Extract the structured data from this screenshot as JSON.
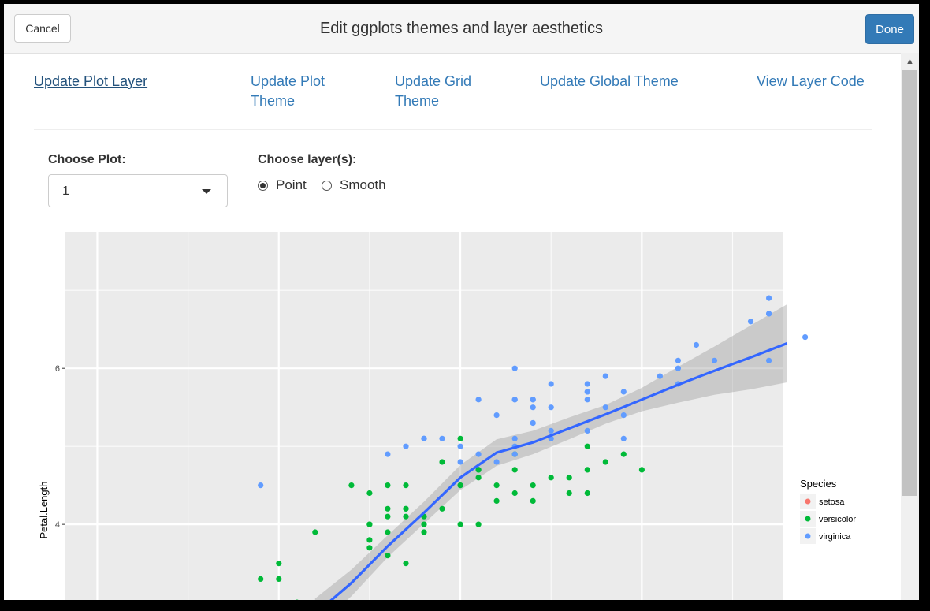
{
  "header": {
    "title": "Edit ggplots themes and layer aesthetics",
    "cancel_label": "Cancel",
    "done_label": "Done"
  },
  "tabs": [
    {
      "label": "Update Plot Layer",
      "active": true
    },
    {
      "label": "Update Plot Theme",
      "active": false
    },
    {
      "label": "Update Grid Theme",
      "active": false
    },
    {
      "label": "Update Global Theme",
      "active": false
    },
    {
      "label": "View Layer Code",
      "active": false
    }
  ],
  "controls": {
    "choose_plot_label": "Choose Plot:",
    "choose_plot_value": "1",
    "choose_layer_label": "Choose layer(s):",
    "layers": [
      {
        "label": "Point",
        "checked": true
      },
      {
        "label": "Smooth",
        "checked": false
      }
    ]
  },
  "chart_data": {
    "type": "scatter",
    "ylabel": "Petal.Length",
    "y_ticks": [
      "4",
      "6"
    ],
    "ylim": [
      2.9,
      7.75
    ],
    "xlim": [
      3.82,
      7.78
    ],
    "background": "#ebebeb",
    "grid": true,
    "legend": {
      "title": "Species",
      "position": "right",
      "entries": [
        {
          "name": "setosa",
          "color": "#f8766d"
        },
        {
          "name": "versicolor",
          "color": "#00ba38"
        },
        {
          "name": "virginica",
          "color": "#619cff"
        }
      ]
    },
    "series": [
      {
        "name": "versicolor",
        "color": "#00ba38",
        "points": [
          [
            7.0,
            4.7
          ],
          [
            6.4,
            4.5
          ],
          [
            6.9,
            4.9
          ],
          [
            5.5,
            4.0
          ],
          [
            6.5,
            4.6
          ],
          [
            5.7,
            4.5
          ],
          [
            6.3,
            4.7
          ],
          [
            4.9,
            3.3
          ],
          [
            6.6,
            4.6
          ],
          [
            5.2,
            3.9
          ],
          [
            5.0,
            3.5
          ],
          [
            5.9,
            4.2
          ],
          [
            6.0,
            4.0
          ],
          [
            6.1,
            4.7
          ],
          [
            5.6,
            3.6
          ],
          [
            6.7,
            4.4
          ],
          [
            5.6,
            4.5
          ],
          [
            5.8,
            4.1
          ],
          [
            6.2,
            4.5
          ],
          [
            5.6,
            3.9
          ],
          [
            5.9,
            4.8
          ],
          [
            6.1,
            4.0
          ],
          [
            6.3,
            4.9
          ],
          [
            6.1,
            4.7
          ],
          [
            6.4,
            4.3
          ],
          [
            6.6,
            4.4
          ],
          [
            6.8,
            4.8
          ],
          [
            6.7,
            5.0
          ],
          [
            6.0,
            4.5
          ],
          [
            5.7,
            3.5
          ],
          [
            5.5,
            3.8
          ],
          [
            5.5,
            3.7
          ],
          [
            5.8,
            3.9
          ],
          [
            6.0,
            5.1
          ],
          [
            5.4,
            4.5
          ],
          [
            6.0,
            4.5
          ],
          [
            6.7,
            4.7
          ],
          [
            6.3,
            4.4
          ],
          [
            5.6,
            4.1
          ],
          [
            5.5,
            4.0
          ],
          [
            5.5,
            4.4
          ],
          [
            6.1,
            4.6
          ],
          [
            5.8,
            4.0
          ],
          [
            5.0,
            3.3
          ],
          [
            5.6,
            4.2
          ],
          [
            5.7,
            4.2
          ],
          [
            5.7,
            4.2
          ],
          [
            6.2,
            4.3
          ],
          [
            5.1,
            3.0
          ],
          [
            5.7,
            4.1
          ]
        ]
      },
      {
        "name": "virginica",
        "color": "#619cff",
        "points": [
          [
            6.3,
            6.0
          ],
          [
            5.8,
            5.1
          ],
          [
            7.1,
            5.9
          ],
          [
            6.3,
            5.6
          ],
          [
            6.5,
            5.8
          ],
          [
            7.6,
            6.6
          ],
          [
            4.9,
            4.5
          ],
          [
            7.3,
            6.3
          ],
          [
            6.7,
            5.8
          ],
          [
            7.2,
            6.1
          ],
          [
            6.5,
            5.1
          ],
          [
            6.4,
            5.3
          ],
          [
            6.8,
            5.5
          ],
          [
            5.7,
            5.0
          ],
          [
            5.8,
            5.1
          ],
          [
            6.4,
            5.3
          ],
          [
            6.5,
            5.5
          ],
          [
            7.7,
            6.7
          ],
          [
            7.7,
            6.9
          ],
          [
            6.0,
            5.0
          ],
          [
            6.9,
            5.7
          ],
          [
            5.6,
            4.9
          ],
          [
            7.7,
            6.7
          ],
          [
            6.3,
            4.9
          ],
          [
            6.7,
            5.7
          ],
          [
            7.2,
            6.0
          ],
          [
            6.2,
            4.8
          ],
          [
            6.1,
            4.9
          ],
          [
            6.4,
            5.6
          ],
          [
            7.2,
            5.8
          ],
          [
            7.4,
            6.1
          ],
          [
            7.9,
            6.4
          ],
          [
            6.4,
            5.6
          ],
          [
            6.3,
            5.1
          ],
          [
            6.1,
            5.6
          ],
          [
            7.7,
            6.1
          ],
          [
            6.3,
            5.6
          ],
          [
            6.4,
            5.5
          ],
          [
            6.0,
            4.8
          ],
          [
            6.9,
            5.4
          ],
          [
            6.7,
            5.6
          ],
          [
            6.9,
            5.1
          ],
          [
            5.8,
            5.1
          ],
          [
            6.8,
            5.9
          ],
          [
            6.7,
            5.7
          ],
          [
            6.7,
            5.2
          ],
          [
            6.3,
            5.0
          ],
          [
            6.5,
            5.2
          ],
          [
            6.2,
            5.4
          ],
          [
            5.9,
            5.1
          ]
        ]
      }
    ],
    "smooth": {
      "color": "#3366ff",
      "x": [
        5.2,
        5.4,
        5.6,
        5.8,
        6.0,
        6.2,
        6.4,
        6.6,
        6.8,
        7.0,
        7.2,
        7.4,
        7.6,
        7.8
      ],
      "y": [
        2.85,
        3.25,
        3.72,
        4.15,
        4.6,
        4.92,
        5.05,
        5.23,
        5.41,
        5.6,
        5.79,
        5.97,
        6.14,
        6.32
      ],
      "upper": [
        3.05,
        3.42,
        3.86,
        4.29,
        4.76,
        5.09,
        5.2,
        5.37,
        5.53,
        5.75,
        6.02,
        6.28,
        6.55,
        6.82
      ],
      "lower": [
        2.65,
        3.08,
        3.58,
        4.01,
        4.44,
        4.75,
        4.9,
        5.09,
        5.29,
        5.45,
        5.56,
        5.66,
        5.73,
        5.82
      ]
    }
  }
}
